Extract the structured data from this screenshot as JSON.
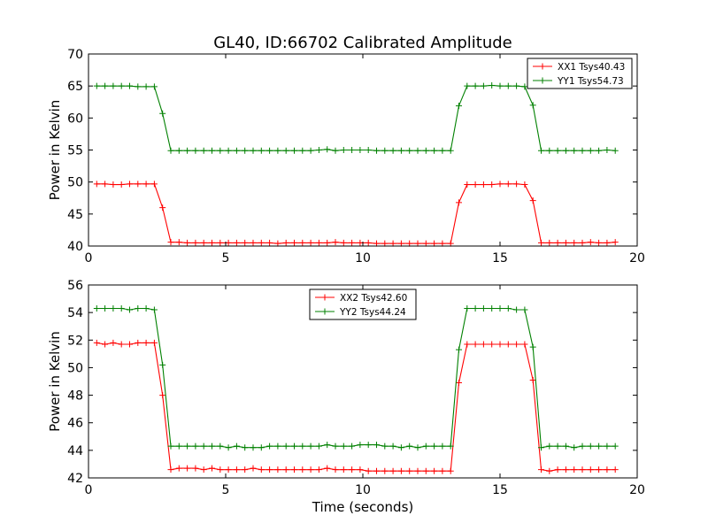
{
  "figure": {
    "title": "GL40, ID:66702 Calibrated Amplitude"
  },
  "chart_data": [
    {
      "type": "line",
      "title": "GL40, ID:66702 Calibrated Amplitude",
      "xlabel": "",
      "ylabel": "Power in Kelvin",
      "xlim": [
        0,
        20
      ],
      "ylim": [
        40,
        70
      ],
      "xticks": [
        0,
        5,
        10,
        15,
        20
      ],
      "yticks": [
        40,
        45,
        50,
        55,
        60,
        65,
        70
      ],
      "grid": false,
      "legend_position": "top-right",
      "x": [
        0.3,
        0.6,
        0.9,
        1.2,
        1.5,
        1.8,
        2.1,
        2.4,
        2.7,
        3.0,
        3.3,
        3.6,
        3.9,
        4.2,
        4.5,
        4.8,
        5.1,
        5.4,
        5.7,
        6.0,
        6.3,
        6.6,
        6.9,
        7.2,
        7.5,
        7.8,
        8.1,
        8.4,
        8.7,
        9.0,
        9.3,
        9.6,
        9.9,
        10.2,
        10.5,
        10.8,
        11.1,
        11.4,
        11.7,
        12.0,
        12.3,
        12.6,
        12.9,
        13.2,
        13.5,
        13.8,
        14.1,
        14.4,
        14.7,
        15.0,
        15.3,
        15.6,
        15.9,
        16.2,
        16.5,
        16.8,
        17.1,
        17.4,
        17.7,
        18.0,
        18.3,
        18.6,
        18.9,
        19.2
      ],
      "series": [
        {
          "name": "XX1 Tsys40.43",
          "color": "#ff0000",
          "values": [
            49.7,
            49.7,
            49.6,
            49.6,
            49.7,
            49.7,
            49.7,
            49.7,
            46.0,
            40.6,
            40.6,
            40.5,
            40.5,
            40.5,
            40.5,
            40.5,
            40.5,
            40.5,
            40.5,
            40.5,
            40.5,
            40.5,
            40.4,
            40.5,
            40.5,
            40.5,
            40.5,
            40.5,
            40.5,
            40.6,
            40.5,
            40.5,
            40.5,
            40.5,
            40.4,
            40.4,
            40.4,
            40.4,
            40.4,
            40.4,
            40.4,
            40.4,
            40.4,
            40.4,
            46.8,
            49.6,
            49.6,
            49.6,
            49.6,
            49.7,
            49.7,
            49.7,
            49.6,
            47.1,
            40.5,
            40.5,
            40.5,
            40.5,
            40.5,
            40.5,
            40.6,
            40.5,
            40.5,
            40.6
          ]
        },
        {
          "name": "YY1 Tsys54.73",
          "color": "#008000",
          "values": [
            65.0,
            65.0,
            65.0,
            65.0,
            65.0,
            64.9,
            64.9,
            64.9,
            60.7,
            54.9,
            54.9,
            54.9,
            54.9,
            54.9,
            54.9,
            54.9,
            54.9,
            54.9,
            54.9,
            54.9,
            54.9,
            54.9,
            54.9,
            54.9,
            54.9,
            54.9,
            54.9,
            55.0,
            55.1,
            54.9,
            55.0,
            55.0,
            55.0,
            55.0,
            54.9,
            54.9,
            54.9,
            54.9,
            54.9,
            54.9,
            54.9,
            54.9,
            54.9,
            54.9,
            61.9,
            65.0,
            65.0,
            65.0,
            65.1,
            65.0,
            65.0,
            65.0,
            64.9,
            62.0,
            54.9,
            54.9,
            54.9,
            54.9,
            54.9,
            54.9,
            54.9,
            54.9,
            55.0,
            54.9
          ]
        }
      ]
    },
    {
      "type": "line",
      "title": "",
      "xlabel": "Time (seconds)",
      "ylabel": "Power in Kelvin",
      "xlim": [
        0,
        20
      ],
      "ylim": [
        42,
        56
      ],
      "xticks": [
        0,
        5,
        10,
        15,
        20
      ],
      "yticks": [
        42,
        44,
        46,
        48,
        50,
        52,
        54,
        56
      ],
      "grid": false,
      "legend_position": "top-center",
      "x": [
        0.3,
        0.6,
        0.9,
        1.2,
        1.5,
        1.8,
        2.1,
        2.4,
        2.7,
        3.0,
        3.3,
        3.6,
        3.9,
        4.2,
        4.5,
        4.8,
        5.1,
        5.4,
        5.7,
        6.0,
        6.3,
        6.6,
        6.9,
        7.2,
        7.5,
        7.8,
        8.1,
        8.4,
        8.7,
        9.0,
        9.3,
        9.6,
        9.9,
        10.2,
        10.5,
        10.8,
        11.1,
        11.4,
        11.7,
        12.0,
        12.3,
        12.6,
        12.9,
        13.2,
        13.5,
        13.8,
        14.1,
        14.4,
        14.7,
        15.0,
        15.3,
        15.6,
        15.9,
        16.2,
        16.5,
        16.8,
        17.1,
        17.4,
        17.7,
        18.0,
        18.3,
        18.6,
        18.9,
        19.2
      ],
      "series": [
        {
          "name": "XX2 Tsys42.60",
          "color": "#ff0000",
          "values": [
            51.8,
            51.7,
            51.8,
            51.7,
            51.7,
            51.8,
            51.8,
            51.8,
            48.0,
            42.6,
            42.7,
            42.7,
            42.7,
            42.6,
            42.7,
            42.6,
            42.6,
            42.6,
            42.6,
            42.7,
            42.6,
            42.6,
            42.6,
            42.6,
            42.6,
            42.6,
            42.6,
            42.6,
            42.7,
            42.6,
            42.6,
            42.6,
            42.6,
            42.5,
            42.5,
            42.5,
            42.5,
            42.5,
            42.5,
            42.5,
            42.5,
            42.5,
            42.5,
            42.5,
            48.9,
            51.7,
            51.7,
            51.7,
            51.7,
            51.7,
            51.7,
            51.7,
            51.7,
            49.1,
            42.6,
            42.5,
            42.6,
            42.6,
            42.6,
            42.6,
            42.6,
            42.6,
            42.6,
            42.6
          ]
        },
        {
          "name": "YY2 Tsys44.24",
          "color": "#008000",
          "values": [
            54.3,
            54.3,
            54.3,
            54.3,
            54.2,
            54.3,
            54.3,
            54.2,
            50.2,
            44.3,
            44.3,
            44.3,
            44.3,
            44.3,
            44.3,
            44.3,
            44.2,
            44.3,
            44.2,
            44.2,
            44.2,
            44.3,
            44.3,
            44.3,
            44.3,
            44.3,
            44.3,
            44.3,
            44.4,
            44.3,
            44.3,
            44.3,
            44.4,
            44.4,
            44.4,
            44.3,
            44.3,
            44.2,
            44.3,
            44.2,
            44.3,
            44.3,
            44.3,
            44.3,
            51.3,
            54.3,
            54.3,
            54.3,
            54.3,
            54.3,
            54.3,
            54.2,
            54.2,
            51.5,
            44.2,
            44.3,
            44.3,
            44.3,
            44.2,
            44.3,
            44.3,
            44.3,
            44.3,
            44.3
          ]
        }
      ]
    }
  ]
}
